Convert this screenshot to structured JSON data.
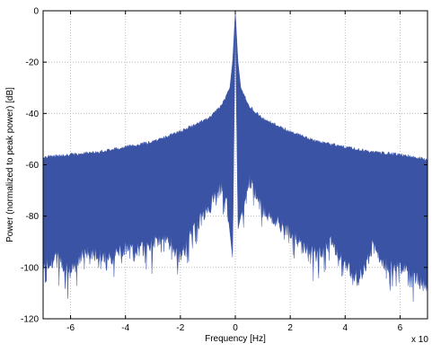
{
  "chart_data": {
    "type": "area",
    "title": "",
    "xlabel": "Frequency [Hz]",
    "ylabel": "Power (normalized to peak power) [dB]",
    "x_multiplier_label": "x 10",
    "xlim": [
      -7,
      7
    ],
    "ylim": [
      -120,
      0
    ],
    "x_ticks": [
      -6,
      -4,
      -2,
      0,
      2,
      4,
      6
    ],
    "y_ticks": [
      0,
      -20,
      -40,
      -60,
      -80,
      -100,
      -120
    ],
    "grid": true,
    "grid_style": "dotted",
    "legend": "none",
    "series": [
      {
        "color": "#3a53a4",
        "upper_envelope": {
          "x": [
            -7,
            -6,
            -5,
            -4,
            -3,
            -2,
            -1,
            -0.5,
            -0.2,
            -0.1,
            0,
            0.1,
            0.2,
            0.5,
            1,
            2,
            3,
            4,
            5,
            6,
            7
          ],
          "y": [
            -57,
            -56,
            -55,
            -53,
            -51,
            -47,
            -42,
            -37,
            -30,
            -20,
            0,
            -20,
            -30,
            -37,
            -42,
            -47,
            -51,
            -53,
            -55,
            -56,
            -58
          ]
        },
        "lower_envelope": {
          "x": [
            -7,
            -6.5,
            -6,
            -5.5,
            -5,
            -4.5,
            -4,
            -3.5,
            -3,
            -2.5,
            -2,
            -1.5,
            -1,
            -0.8,
            -0.5,
            -0.3,
            -0.1,
            0,
            0.1,
            0.3,
            0.5,
            0.8,
            1,
            1.5,
            2,
            2.5,
            3,
            3.5,
            4,
            4.5,
            5,
            5.5,
            6,
            6.5,
            7
          ],
          "y": [
            -100,
            -96,
            -102,
            -94,
            -95,
            -96,
            -92,
            -93,
            -90,
            -88,
            -96,
            -85,
            -77,
            -73,
            -68,
            -76,
            -96,
            -5,
            -85,
            -75,
            -66,
            -72,
            -78,
            -82,
            -86,
            -92,
            -95,
            -90,
            -98,
            -105,
            -92,
            -99,
            -100,
            -103,
            -108
          ]
        }
      }
    ]
  }
}
